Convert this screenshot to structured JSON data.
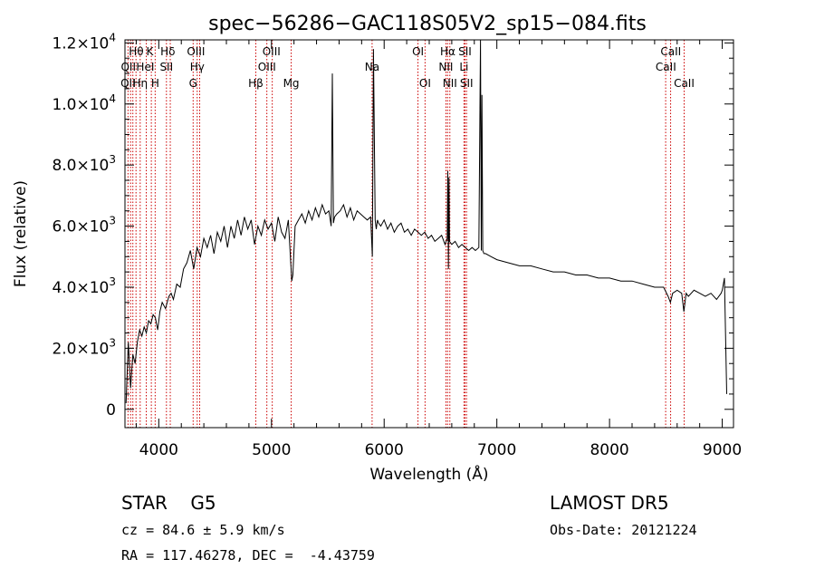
{
  "chart_data": {
    "type": "line",
    "title": "spec−56286−GAC118S05V2_sp15−084.fits",
    "xlabel": "Wavelength (Å)",
    "ylabel": "Flux (relative)",
    "xlim": [
      3700,
      9100
    ],
    "ylim": [
      -600,
      12100
    ],
    "x_ticks": [
      {
        "v": 4000,
        "label": "4000"
      },
      {
        "v": 5000,
        "label": "5000"
      },
      {
        "v": 6000,
        "label": "6000"
      },
      {
        "v": 7000,
        "label": "7000"
      },
      {
        "v": 8000,
        "label": "8000"
      },
      {
        "v": 9000,
        "label": "9000"
      }
    ],
    "y_ticks": [
      {
        "v": 0,
        "label": "0"
      },
      {
        "v": 2000,
        "label": "2.0×10",
        "exp": "3"
      },
      {
        "v": 4000,
        "label": "4.0×10",
        "exp": "3"
      },
      {
        "v": 6000,
        "label": "6.0×10",
        "exp": "3"
      },
      {
        "v": 8000,
        "label": "8.0×10",
        "exp": "3"
      },
      {
        "v": 10000,
        "label": "1.0×10",
        "exp": "4"
      },
      {
        "v": 12000,
        "label": "1.2×10",
        "exp": "4"
      }
    ],
    "grid": false,
    "series": [
      {
        "x": [
          3710,
          3730,
          3750,
          3770,
          3790,
          3810,
          3830,
          3850,
          3870,
          3890,
          3910,
          3930,
          3950,
          3970,
          3990,
          4010,
          4030,
          4060,
          4090,
          4110,
          4130,
          4160,
          4190,
          4220,
          4250,
          4280,
          4310,
          4340,
          4370,
          4400,
          4430,
          4460,
          4490,
          4520,
          4550,
          4580,
          4610,
          4640,
          4670,
          4700,
          4730,
          4760,
          4790,
          4820,
          4850,
          4880,
          4910,
          4940,
          4970,
          5000,
          5030,
          5060,
          5090,
          5120,
          5150,
          5180,
          5190,
          5210,
          5240,
          5270,
          5300,
          5330,
          5360,
          5390,
          5420,
          5450,
          5480,
          5510,
          5530,
          5540,
          5550,
          5560,
          5580,
          5610,
          5640,
          5670,
          5700,
          5730,
          5760,
          5790,
          5820,
          5850,
          5880,
          5895,
          5905,
          5920,
          5930,
          5940,
          5950,
          5970,
          6000,
          6030,
          6060,
          6090,
          6120,
          6150,
          6180,
          6210,
          6240,
          6270,
          6300,
          6330,
          6360,
          6390,
          6420,
          6450,
          6480,
          6510,
          6540,
          6560,
          6565,
          6570,
          6575,
          6580,
          6600,
          6630,
          6660,
          6690,
          6720,
          6750,
          6780,
          6810,
          6840,
          6855,
          6862,
          6868,
          6875,
          6885,
          6900,
          6950,
          7000,
          7100,
          7200,
          7300,
          7400,
          7500,
          7600,
          7700,
          7800,
          7900,
          8000,
          8100,
          8200,
          8300,
          8400,
          8480,
          8520,
          8540,
          8560,
          8600,
          8640,
          8660,
          8680,
          8700,
          8750,
          8800,
          8850,
          8900,
          8950,
          8990,
          9000,
          9020,
          9040
        ],
        "y": [
          200,
          2200,
          700,
          1800,
          1500,
          2200,
          2600,
          2400,
          2700,
          2500,
          2900,
          2800,
          3100,
          3000,
          2600,
          3200,
          3500,
          3300,
          3700,
          3800,
          3600,
          4100,
          4000,
          4600,
          4800,
          5200,
          4600,
          5300,
          5000,
          5600,
          5300,
          5700,
          5100,
          5800,
          5500,
          6000,
          5300,
          6000,
          5600,
          6200,
          5700,
          6300,
          5900,
          6200,
          5400,
          6000,
          5700,
          6200,
          5900,
          6100,
          5500,
          6300,
          5800,
          5600,
          6200,
          4200,
          4400,
          6000,
          6200,
          6400,
          6100,
          6500,
          6200,
          6600,
          6300,
          6700,
          6400,
          6500,
          6000,
          11000,
          6100,
          6300,
          6400,
          6500,
          6700,
          6300,
          6600,
          6200,
          6500,
          6400,
          6300,
          6200,
          6300,
          5000,
          11800,
          6200,
          5900,
          6200,
          6100,
          6000,
          6200,
          5900,
          6100,
          5800,
          6000,
          6100,
          5800,
          5900,
          5700,
          5900,
          5800,
          5700,
          5800,
          5600,
          5700,
          5500,
          5600,
          5700,
          5400,
          5600,
          7800,
          4600,
          7600,
          5500,
          5400,
          5500,
          5300,
          5400,
          5300,
          5200,
          5300,
          5200,
          5300,
          12100,
          5200,
          10300,
          5200,
          5100,
          5100,
          5000,
          4900,
          4800,
          4700,
          4700,
          4600,
          4500,
          4500,
          4400,
          4400,
          4300,
          4300,
          4200,
          4200,
          4100,
          4000,
          4000,
          3700,
          3500,
          3800,
          3900,
          3800,
          3200,
          3800,
          3700,
          3900,
          3800,
          3700,
          3800,
          3600,
          3800,
          3900,
          4300,
          500
        ]
      }
    ],
    "line_labels": [
      {
        "text": "Hθ",
        "row": 0,
        "pos": 3800
      },
      {
        "text": "K",
        "row": 0,
        "pos": 3920
      },
      {
        "text": "Hδ",
        "row": 0,
        "pos": 4080
      },
      {
        "text": "OIII",
        "row": 0,
        "pos": 4330
      },
      {
        "text": "OIII",
        "row": 0,
        "pos": 5000
      },
      {
        "text": "OI",
        "row": 0,
        "pos": 6300
      },
      {
        "text": "Hα",
        "row": 0,
        "pos": 6564
      },
      {
        "text": "SII",
        "row": 0,
        "pos": 6717
      },
      {
        "text": "CaII",
        "row": 0,
        "pos": 8544
      },
      {
        "text": "QII",
        "row": 1,
        "pos": 3730
      },
      {
        "text": "HeI",
        "row": 1,
        "pos": 3880
      },
      {
        "text": "SII",
        "row": 1,
        "pos": 4068
      },
      {
        "text": "Hγ",
        "row": 1,
        "pos": 4341
      },
      {
        "text": "OIII",
        "row": 1,
        "pos": 4960
      },
      {
        "text": "Na",
        "row": 1,
        "pos": 5893
      },
      {
        "text": "NII",
        "row": 1,
        "pos": 6548
      },
      {
        "text": "Li",
        "row": 1,
        "pos": 6708
      },
      {
        "text": "CaII",
        "row": 1,
        "pos": 8500
      },
      {
        "text": "QII",
        "row": 2,
        "pos": 3727
      },
      {
        "text": "Hη",
        "row": 2,
        "pos": 3835
      },
      {
        "text": "H",
        "row": 2,
        "pos": 3968
      },
      {
        "text": "G",
        "row": 2,
        "pos": 4305
      },
      {
        "text": "Hβ",
        "row": 2,
        "pos": 4861
      },
      {
        "text": "Mg",
        "row": 2,
        "pos": 5175
      },
      {
        "text": "OI",
        "row": 2,
        "pos": 6363
      },
      {
        "text": "NII",
        "row": 2,
        "pos": 6583
      },
      {
        "text": "SII",
        "row": 2,
        "pos": 6731
      },
      {
        "text": "CaII",
        "row": 2,
        "pos": 8662
      }
    ],
    "line_markers": [
      3727,
      3750,
      3770,
      3798,
      3835,
      3889,
      3934,
      3968,
      4068,
      4102,
      4305,
      4341,
      4363,
      4861,
      4959,
      5007,
      5175,
      5893,
      6300,
      6363,
      6548,
      6563,
      6583,
      6708,
      6717,
      6731,
      8498,
      8542,
      8662
    ]
  },
  "info": {
    "class_line": "STAR    G5",
    "cz_line": "cz = 84.6 ± 5.9 km/s",
    "radec_line": "RA = 117.46278, DEC =  -4.43759",
    "survey": "LAMOST DR5",
    "obs_date": "Obs-Date: 20121224"
  },
  "colors": {
    "line": "#000000",
    "marker": "#cc0000"
  }
}
